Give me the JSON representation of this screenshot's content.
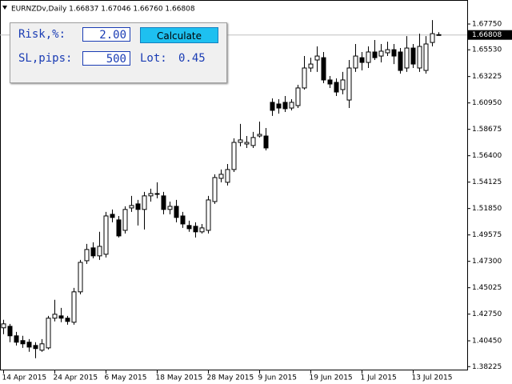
{
  "chart_data": {
    "type": "candlestick",
    "title": "EURNZDv,Daily  1.66837 1.67046 1.66760 1.66808",
    "categories": [
      "14 Apr 2015",
      null,
      null,
      null,
      null,
      null,
      null,
      null,
      "24 Apr 2015",
      null,
      null,
      null,
      null,
      null,
      null,
      null,
      "6 May 2015",
      null,
      null,
      null,
      null,
      null,
      null,
      null,
      "18 May 2015",
      null,
      null,
      null,
      null,
      null,
      null,
      null,
      "28 May 2015",
      null,
      null,
      null,
      null,
      null,
      null,
      null,
      "9 Jun 2015",
      null,
      null,
      null,
      null,
      null,
      null,
      null,
      "19 Jun 2015",
      null,
      null,
      null,
      null,
      null,
      null,
      null,
      "1 Jul 2015",
      null,
      null,
      null,
      null,
      null,
      null,
      null,
      "13 Jul 2015",
      null,
      null,
      null,
      null
    ],
    "open": [
      1.4157,
      1.417,
      1.4088,
      1.4047,
      1.4033,
      1.4005,
      1.3964,
      1.3984,
      1.424,
      1.426,
      1.424,
      1.4205,
      1.4467,
      1.4735,
      1.4846,
      1.4777,
      1.4791,
      1.5135,
      1.5087,
      1.4997,
      1.519,
      1.5225,
      1.5177,
      1.5294,
      1.5314,
      1.5294,
      1.5177,
      1.5204,
      1.5121,
      1.5039,
      1.5032,
      1.4984,
      1.4997,
      1.5245,
      1.5445,
      1.5411,
      1.5521,
      1.5755,
      1.5741,
      1.5728,
      1.581,
      1.581,
      1.61,
      1.6086,
      1.61,
      1.6051,
      1.6072,
      1.6224,
      1.6396,
      1.6465,
      1.6485,
      1.6293,
      1.6272,
      1.621,
      1.612,
      1.6396,
      1.6485,
      1.6444,
      1.6534,
      1.6499,
      1.6527,
      1.6554,
      1.6534,
      1.6396,
      1.6568,
      1.6396,
      1.6375,
      1.6616,
      1.66837
    ],
    "high": [
      1.4226,
      1.4191,
      1.4122,
      1.4088,
      1.406,
      1.4033,
      1.406,
      1.426,
      1.4398,
      1.4329,
      1.426,
      1.4501,
      1.4742,
      1.488,
      1.4894,
      1.4984,
      1.5156,
      1.5177,
      1.5121,
      1.5204,
      1.5294,
      1.5259,
      1.5328,
      1.5356,
      1.5411,
      1.5328,
      1.5245,
      1.5259,
      1.5156,
      1.508,
      1.5066,
      1.5052,
      1.5294,
      1.548,
      1.5521,
      1.5569,
      1.579,
      1.5914,
      1.581,
      1.5845,
      1.5934,
      1.5879,
      1.6134,
      1.6127,
      1.6155,
      1.6127,
      1.6251,
      1.6499,
      1.6485,
      1.6582,
      1.6534,
      1.6327,
      1.6306,
      1.6362,
      1.6465,
      1.6603,
      1.6534,
      1.6582,
      1.6637,
      1.6603,
      1.6623,
      1.6603,
      1.6568,
      1.6671,
      1.6603,
      1.6692,
      1.6671,
      1.6809,
      1.67046
    ],
    "low": [
      1.4102,
      1.4033,
      1.4005,
      1.3984,
      1.395,
      1.3895,
      1.395,
      1.3971,
      1.4212,
      1.4205,
      1.4184,
      1.4184,
      1.4446,
      1.4708,
      1.4756,
      1.4742,
      1.4763,
      1.5066,
      1.4935,
      1.497,
      1.5156,
      1.5039,
      1.5004,
      1.5245,
      1.5273,
      1.5135,
      1.5135,
      1.5066,
      1.5018,
      1.4984,
      1.4935,
      1.497,
      1.497,
      1.5225,
      1.5411,
      1.5383,
      1.55,
      1.5721,
      1.5707,
      1.5707,
      1.5797,
      1.5686,
      1.5983,
      1.6003,
      1.6017,
      1.6031,
      1.6051,
      1.621,
      1.6362,
      1.6362,
      1.6265,
      1.6224,
      1.6155,
      1.6169,
      1.6051,
      1.6362,
      1.6375,
      1.6396,
      1.6465,
      1.6444,
      1.6499,
      1.643,
      1.6348,
      1.6362,
      1.6396,
      1.6362,
      1.6348,
      1.6582,
      1.6676
    ],
    "close": [
      1.4191,
      1.4088,
      1.4033,
      1.4019,
      1.3991,
      1.3978,
      1.4019,
      1.424,
      1.4274,
      1.424,
      1.4212,
      1.4467,
      1.4721,
      1.4832,
      1.4777,
      1.4859,
      1.5121,
      1.5108,
      1.4949,
      1.5177,
      1.5211,
      1.5177,
      1.5294,
      1.5314,
      1.5307,
      1.5177,
      1.5204,
      1.5108,
      1.5052,
      1.5011,
      1.4984,
      1.5018,
      1.5259,
      1.5452,
      1.548,
      1.5521,
      1.5755,
      1.5776,
      1.5755,
      1.5797,
      1.5824,
      1.5707,
      1.6031,
      1.6051,
      1.6045,
      1.61,
      1.6224,
      1.6396,
      1.643,
      1.6499,
      1.6293,
      1.6258,
      1.6189,
      1.6293,
      1.6396,
      1.6499,
      1.6444,
      1.6534,
      1.6485,
      1.6541,
      1.6554,
      1.6499,
      1.6375,
      1.6568,
      1.643,
      1.6582,
      1.6603,
      1.6692,
      1.66808
    ],
    "current_price": 1.66808,
    "ylim": [
      1.379,
      1.6982
    ],
    "yticks": [
      {
        "value": 1.6775,
        "label": "1.67750"
      },
      {
        "value": 1.6553,
        "label": "1.65530"
      },
      {
        "value": 1.63225,
        "label": "1.63225"
      },
      {
        "value": 1.6095,
        "label": "1.60950"
      },
      {
        "value": 1.58675,
        "label": "1.58675"
      },
      {
        "value": 1.564,
        "label": "1.56400"
      },
      {
        "value": 1.54125,
        "label": "1.54125"
      },
      {
        "value": 1.5185,
        "label": "1.51850"
      },
      {
        "value": 1.49575,
        "label": "1.49575"
      },
      {
        "value": 1.473,
        "label": "1.47300"
      },
      {
        "value": 1.45025,
        "label": "1.45025"
      },
      {
        "value": 1.4275,
        "label": "1.42750"
      },
      {
        "value": 1.4045,
        "label": "1.40450"
      },
      {
        "value": 1.38225,
        "label": "1.38225"
      }
    ],
    "up_color": "#ffffff",
    "down_color": "#000000"
  },
  "panel": {
    "risk_label": "Risk,%:",
    "risk_value": "2.00",
    "button": "Calculate",
    "sl_label": "SL,pips:",
    "sl_value": "500",
    "lot_label": "Lot:",
    "lot_value": "0.45"
  }
}
